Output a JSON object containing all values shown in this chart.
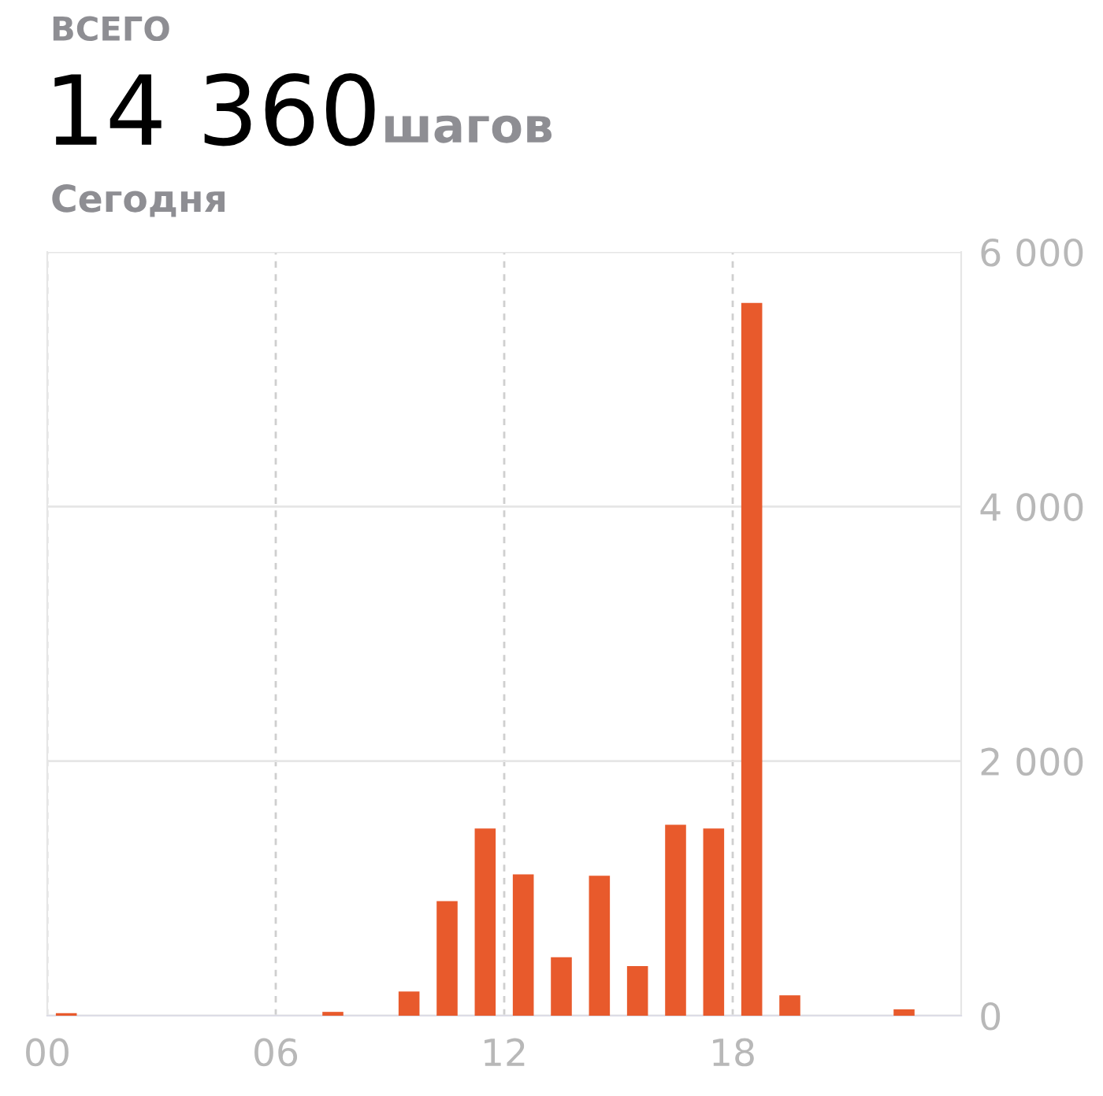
{
  "chart_data": {
    "type": "bar",
    "title": "14 360",
    "annotations": [
      "ВСЕГО",
      "шагов",
      "Сегодня"
    ],
    "x": [
      0.5,
      1.5,
      2.5,
      3.5,
      4.5,
      5.5,
      6.5,
      7.5,
      8.5,
      9.5,
      10.5,
      11.5,
      12.5,
      13.5,
      14.5,
      15.5,
      16.5,
      17.5,
      18.5,
      19.5,
      20.5,
      21.5,
      22.5,
      23.5
    ],
    "values": [
      20,
      0,
      0,
      0,
      0,
      0,
      0,
      30,
      0,
      190,
      900,
      1470,
      1110,
      460,
      1100,
      390,
      1500,
      1470,
      5600,
      160,
      0,
      0,
      50,
      0
    ],
    "color": "#e85a2c",
    "xlim": [
      0,
      24
    ],
    "xticks": [
      {
        "value": 0,
        "label": "00"
      },
      {
        "value": 6,
        "label": "06"
      },
      {
        "value": 12,
        "label": "12"
      },
      {
        "value": 18,
        "label": "18"
      }
    ],
    "ylim": [
      0,
      6000
    ],
    "yticks": [
      0,
      {
        "value": 2000,
        "label": "2 000"
      },
      {
        "value": 4000,
        "label": "4 000"
      },
      {
        "value": 6000,
        "label": "6 000"
      }
    ],
    "grid": true
  }
}
